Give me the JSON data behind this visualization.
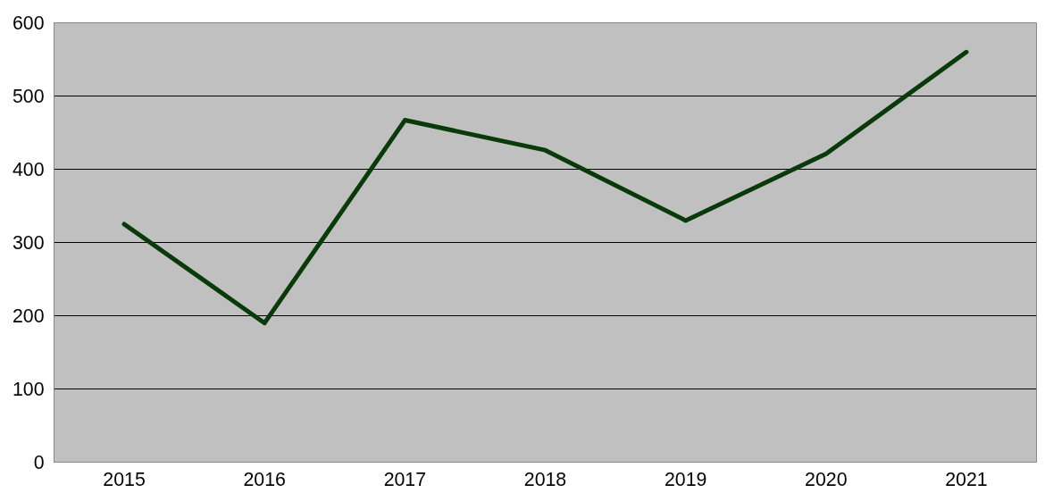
{
  "chart_data": {
    "type": "line",
    "categories": [
      "2015",
      "2016",
      "2017",
      "2018",
      "2019",
      "2020",
      "2021"
    ],
    "series": [
      {
        "color": "#0a3a0a",
        "values": [
          325,
          190,
          467,
          426,
          330,
          421,
          560
        ]
      }
    ],
    "ylim": [
      0,
      600
    ],
    "yticks": [
      0,
      100,
      200,
      300,
      400,
      500,
      600
    ],
    "grid": "y",
    "marker": "none",
    "line_style": "solid"
  }
}
